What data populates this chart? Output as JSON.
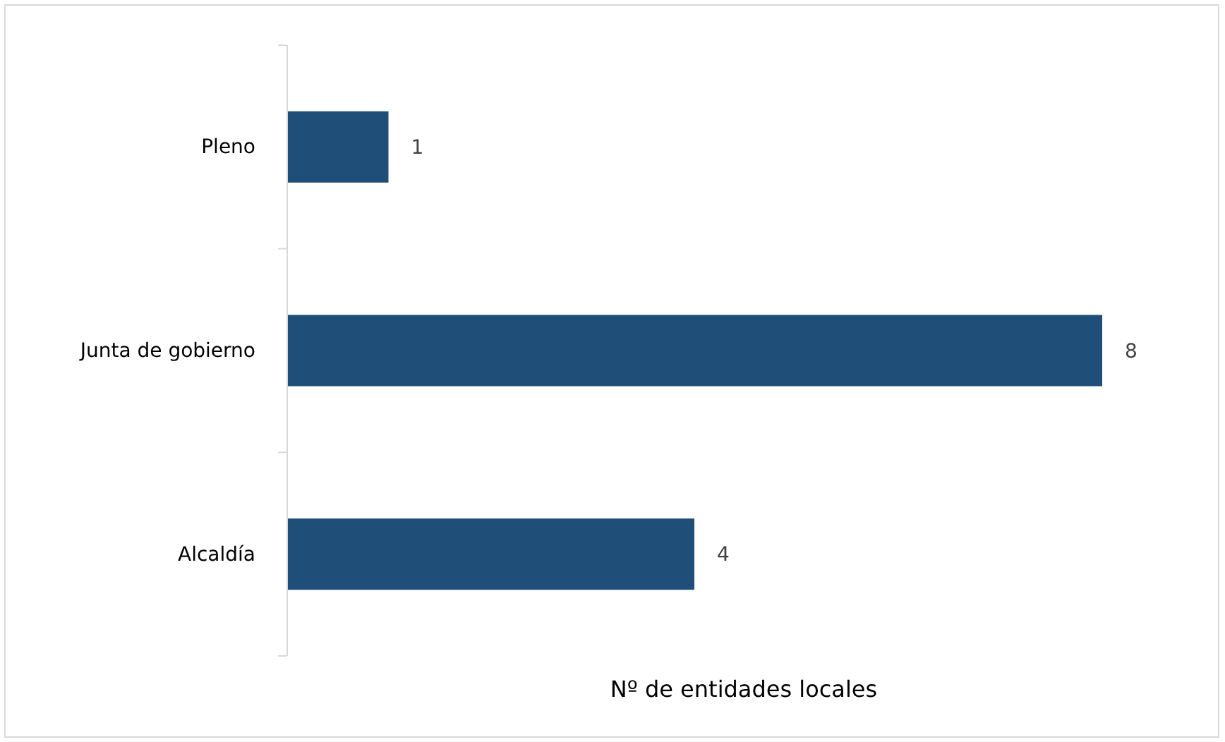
{
  "chart_data": {
    "type": "bar",
    "orientation": "horizontal",
    "categories": [
      "Pleno",
      "Junta de gobierno",
      "Alcaldía"
    ],
    "values": [
      1,
      8,
      4
    ],
    "color": "#1f4e79",
    "xlabel": "Nº de entidades locales",
    "data_labels": true
  }
}
